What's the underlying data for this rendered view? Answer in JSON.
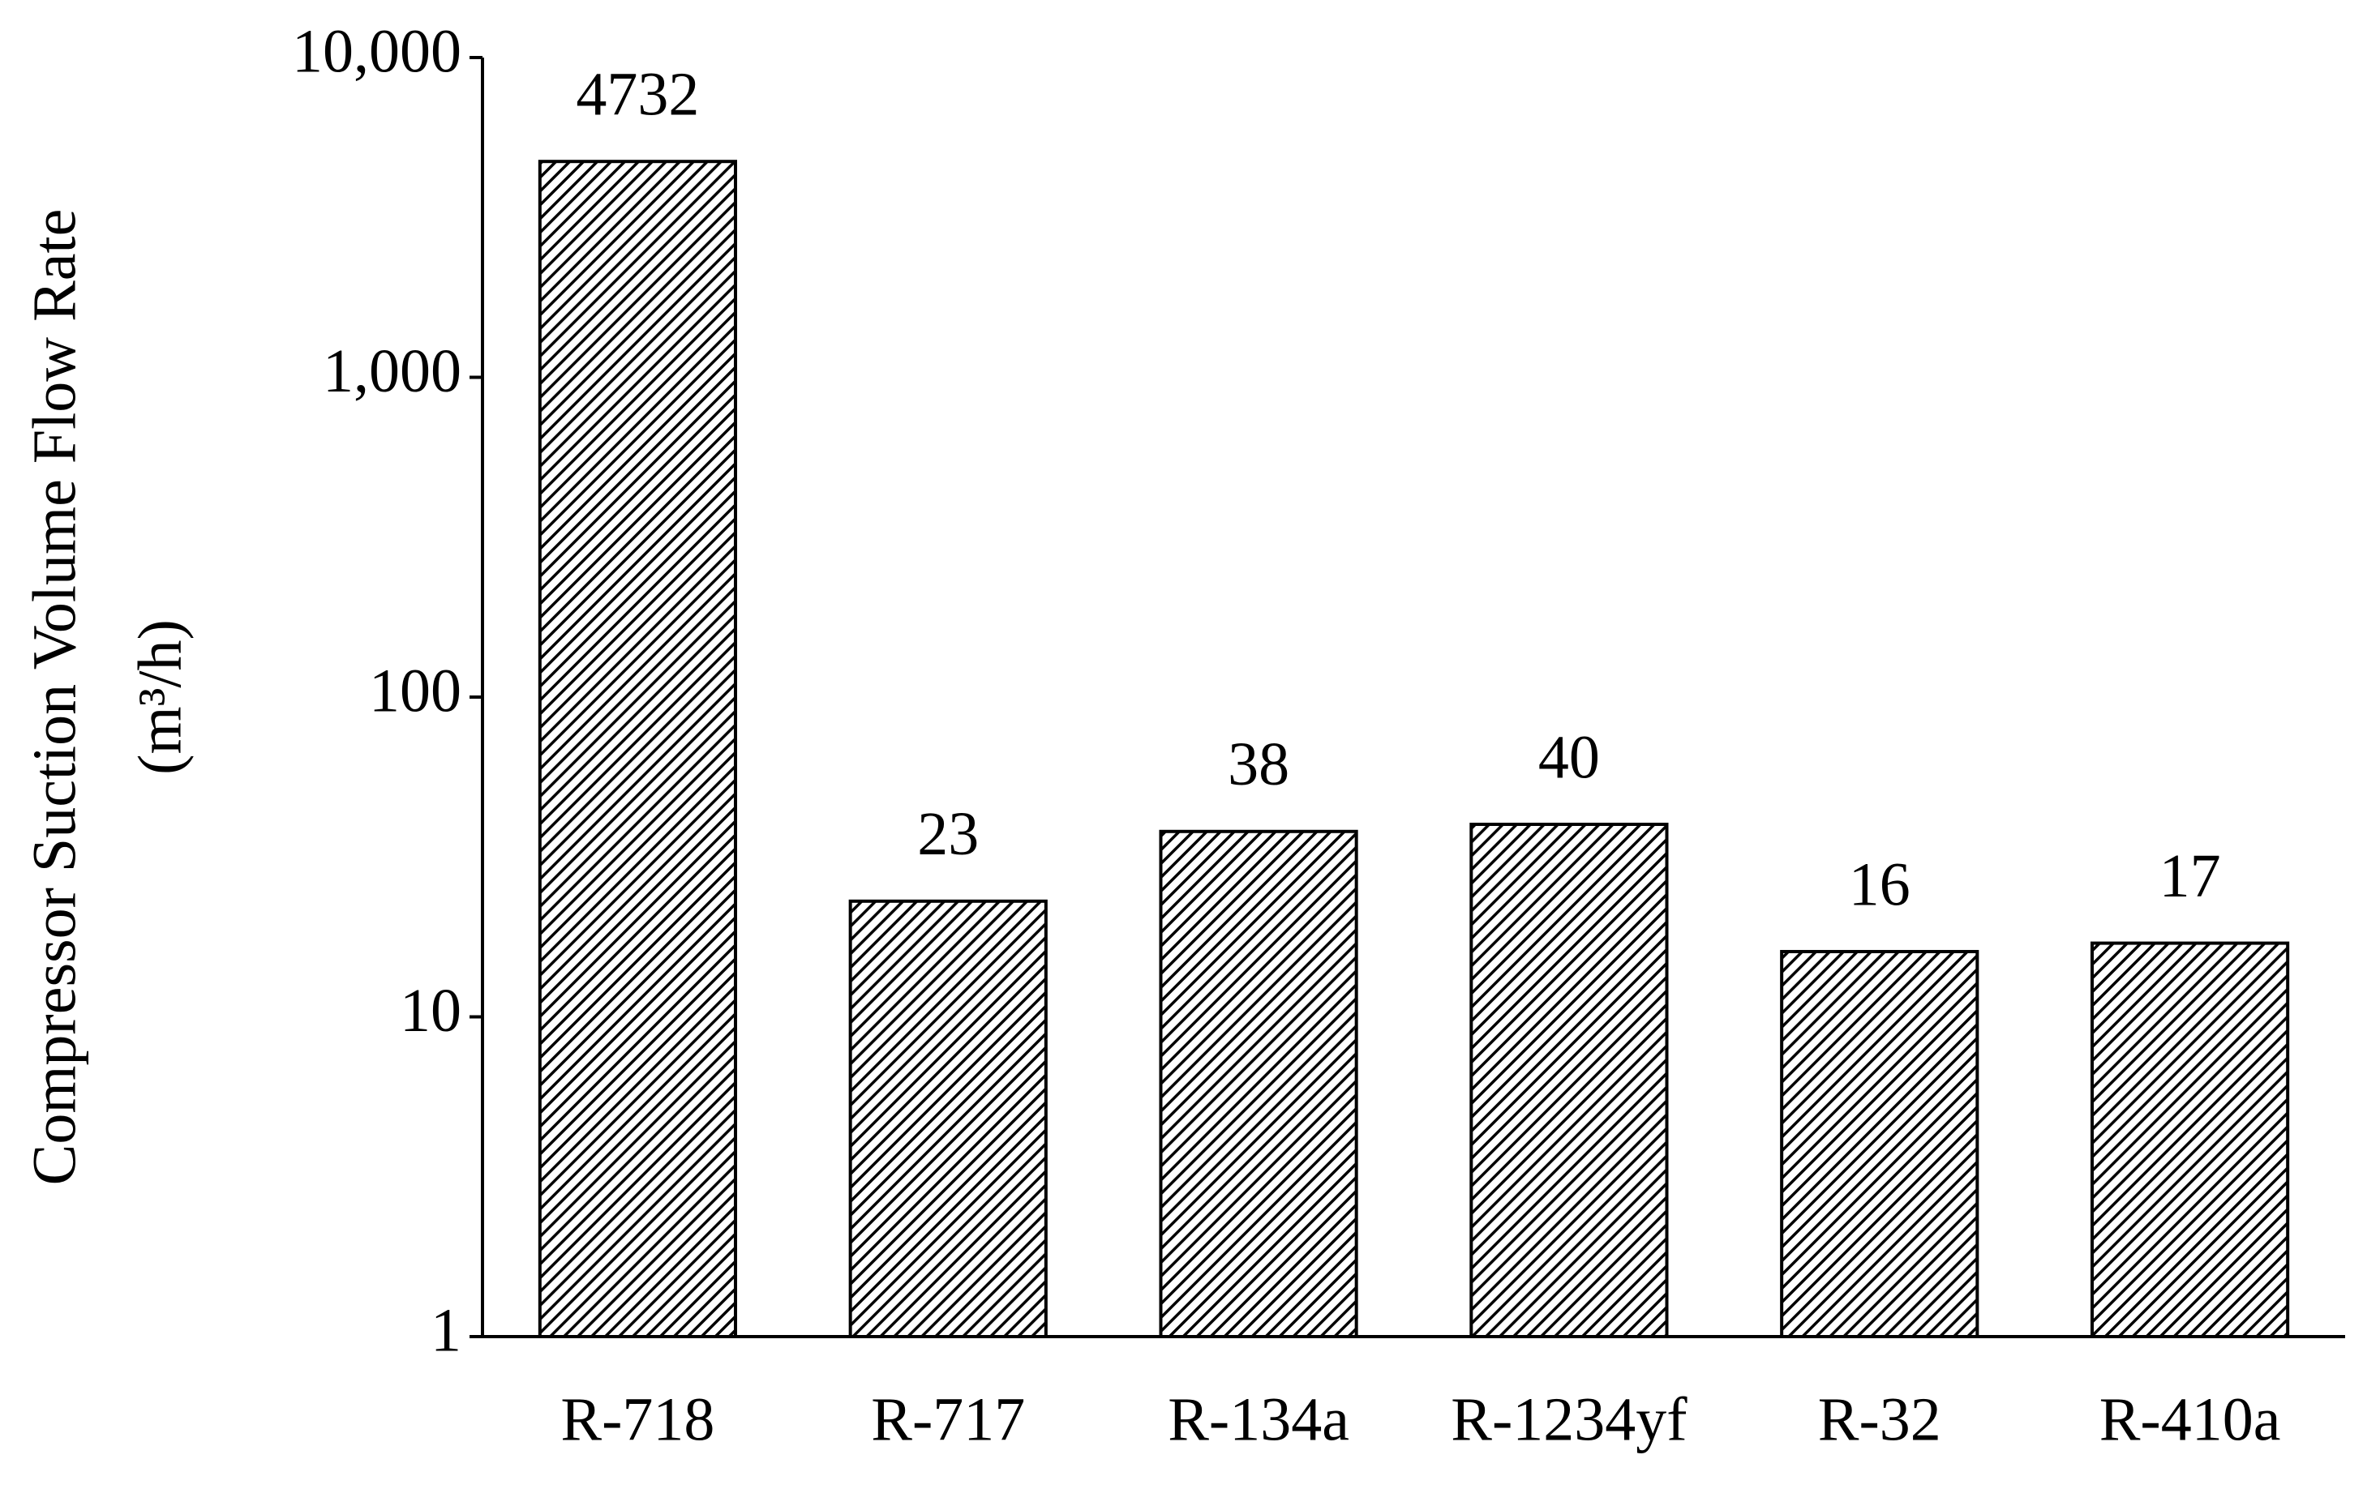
{
  "chart_data": {
    "type": "bar",
    "y_label": [
      "Compressor Suction Volume Flow Rate",
      "(m³/h)"
    ],
    "categories": [
      "R-718",
      "R-717",
      "R-134a",
      "R-1234yf",
      "R-32",
      "R-410a"
    ],
    "values": [
      4732,
      23,
      38,
      40,
      16,
      17
    ],
    "color": "#000000",
    "log_scale": true,
    "ylim": [
      1,
      10000
    ],
    "yticks": [
      1,
      10,
      100,
      {
        "value": 1000,
        "label": "1,000"
      },
      {
        "value": 10000,
        "label": "10,000"
      }
    ],
    "grid": false
  }
}
